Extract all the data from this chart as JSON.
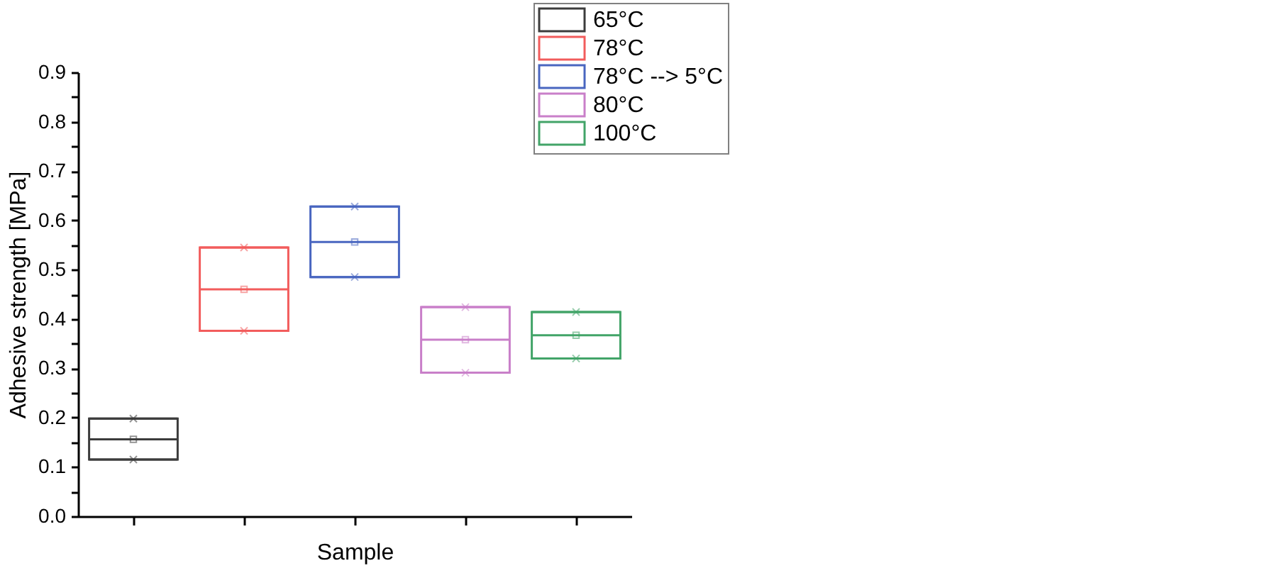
{
  "chart_data": {
    "type": "box",
    "xlabel": "Sample",
    "ylabel": "Adhesive strength [MPa]",
    "categories": [
      null,
      null,
      null,
      null,
      null
    ],
    "series": [
      {
        "name": "65°C",
        "color": "#3c3c3c",
        "boxes": [
          {
            "low": 0.115,
            "q1": 0.115,
            "median": 0.156,
            "q3": 0.198,
            "high": 0.198,
            "mean": 0.156,
            "outliers": [
              0.115,
              0.198
            ]
          },
          null,
          null,
          null,
          null
        ]
      },
      {
        "name": "78°C",
        "color": "#f25c5c",
        "boxes": [
          null,
          {
            "low": 0.376,
            "q1": 0.376,
            "median": 0.46,
            "q3": 0.545,
            "high": 0.545,
            "mean": 0.46,
            "outliers": [
              0.376,
              0.545
            ]
          },
          null,
          null,
          null
        ]
      },
      {
        "name": "78°C --> 5°C",
        "color": "#4966c0",
        "boxes": [
          null,
          null,
          {
            "low": 0.485,
            "q1": 0.485,
            "median": 0.556,
            "q3": 0.628,
            "high": 0.628,
            "mean": 0.556,
            "outliers": [
              0.485,
              0.628
            ]
          },
          null,
          null
        ]
      },
      {
        "name": "80°C",
        "color": "#c97fc9",
        "boxes": [
          null,
          null,
          null,
          {
            "low": 0.291,
            "q1": 0.291,
            "median": 0.358,
            "q3": 0.424,
            "high": 0.424,
            "mean": 0.358,
            "outliers": [
              0.291,
              0.424
            ]
          },
          null
        ]
      },
      {
        "name": "100°C",
        "color": "#42a468",
        "boxes": [
          null,
          null,
          null,
          null,
          {
            "low": 0.32,
            "q1": 0.32,
            "median": 0.367,
            "q3": 0.414,
            "high": 0.414,
            "mean": 0.367,
            "outliers": [
              0.32,
              0.414
            ]
          }
        ]
      }
    ],
    "ylim": [
      0,
      0.9
    ],
    "yticks": [
      {
        "value": 0,
        "label": "0.0"
      },
      {
        "value": 0.05,
        "label": null
      },
      0.1,
      {
        "value": 0.15,
        "label": null
      },
      0.2,
      {
        "value": 0.25,
        "label": null
      },
      0.3,
      {
        "value": 0.35,
        "label": null
      },
      0.4,
      {
        "value": 0.45,
        "label": null
      },
      0.5,
      {
        "value": 0.55,
        "label": null
      },
      0.6,
      {
        "value": 0.65,
        "label": null
      },
      0.7,
      {
        "value": 0.75,
        "label": null
      },
      0.8,
      {
        "value": 0.85,
        "label": null
      },
      0.9
    ],
    "legend": "top right"
  }
}
